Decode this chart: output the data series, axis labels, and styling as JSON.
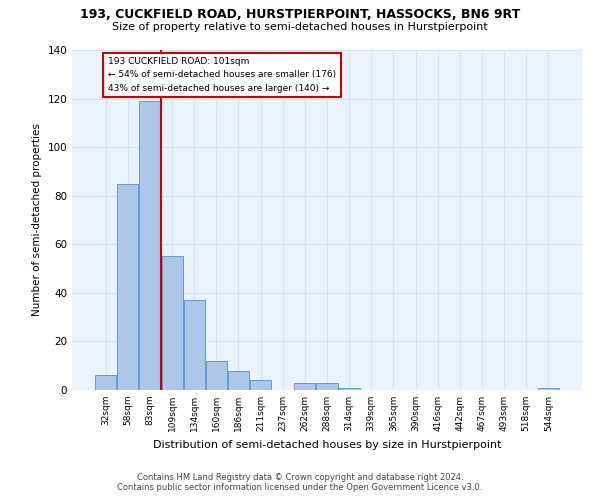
{
  "title": "193, CUCKFIELD ROAD, HURSTPIERPOINT, HASSOCKS, BN6 9RT",
  "subtitle": "Size of property relative to semi-detached houses in Hurstpierpoint",
  "xlabel": "Distribution of semi-detached houses by size in Hurstpierpoint",
  "ylabel": "Number of semi-detached properties",
  "footnote1": "Contains HM Land Registry data © Crown copyright and database right 2024.",
  "footnote2": "Contains public sector information licensed under the Open Government Licence v3.0.",
  "bar_labels": [
    "32sqm",
    "58sqm",
    "83sqm",
    "109sqm",
    "134sqm",
    "160sqm",
    "186sqm",
    "211sqm",
    "237sqm",
    "262sqm",
    "288sqm",
    "314sqm",
    "339sqm",
    "365sqm",
    "390sqm",
    "416sqm",
    "442sqm",
    "467sqm",
    "493sqm",
    "518sqm",
    "544sqm"
  ],
  "bar_values": [
    6,
    85,
    119,
    55,
    37,
    12,
    8,
    4,
    0,
    3,
    3,
    1,
    0,
    0,
    0,
    0,
    0,
    0,
    0,
    0,
    1
  ],
  "bar_color": "#aec6e8",
  "bar_edge_color": "#5b9bd5",
  "grid_color": "#d0e4f7",
  "background_color": "#eaf3fb",
  "vline_index": 2.5,
  "vline_color": "#cc0000",
  "annotation_text": "193 CUCKFIELD ROAD: 101sqm\n← 54% of semi-detached houses are smaller (176)\n43% of semi-detached houses are larger (140) →",
  "annotation_box_color": "#cc0000",
  "ylim": [
    0,
    140
  ],
  "yticks": [
    0,
    20,
    40,
    60,
    80,
    100,
    120,
    140
  ]
}
